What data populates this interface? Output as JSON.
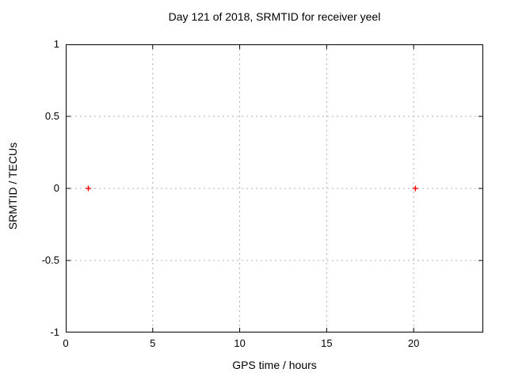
{
  "chart_data": {
    "type": "scatter",
    "title": "Day 121 of 2018, SRMTID for receiver yeel",
    "xlabel": "GPS time / hours",
    "ylabel": "SRMTID / TECUs",
    "xlim": [
      0,
      24
    ],
    "ylim": [
      -1,
      1
    ],
    "xticks": [
      {
        "v": 0,
        "label": "0"
      },
      {
        "v": 5,
        "label": "5"
      },
      {
        "v": 10,
        "label": "10"
      },
      {
        "v": 15,
        "label": "15"
      },
      {
        "v": 20,
        "label": "20"
      }
    ],
    "yticks": [
      {
        "v": 1,
        "label": "1"
      },
      {
        "v": 0.5,
        "label": "0.5"
      },
      {
        "v": 0,
        "label": "0"
      },
      {
        "v": -0.5,
        "label": "-0.5"
      },
      {
        "v": -1,
        "label": "-1"
      }
    ],
    "grid": true,
    "legend": null,
    "series": [
      {
        "name": "SRMTID",
        "marker": "plus",
        "color": "#ff0000",
        "points": [
          {
            "x": 1.3,
            "y": 0.0
          },
          {
            "x": 20.1,
            "y": 0.0
          }
        ]
      }
    ]
  },
  "colors": {
    "background": "#ffffff",
    "border": "#000000",
    "grid": "#b0b0b0",
    "text": "#000000",
    "marker": "#ff0000"
  }
}
